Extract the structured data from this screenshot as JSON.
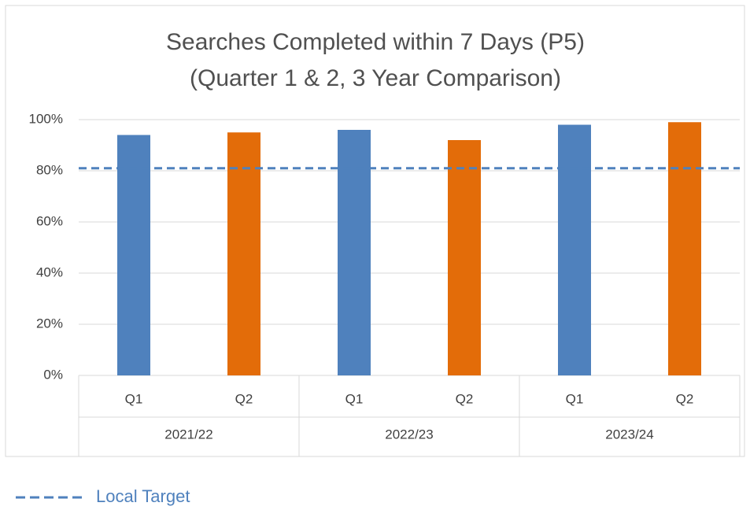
{
  "chart_data": {
    "type": "bar",
    "title": [
      "Searches Completed within 7 Days (P5)",
      "(Quarter 1 & 2, 3 Year Comparison)"
    ],
    "categories": [
      "Q1",
      "Q2",
      "Q1",
      "Q2",
      "Q1",
      "Q2"
    ],
    "groups": [
      "2021/22",
      "2022/23",
      "2023/24"
    ],
    "values": [
      94,
      95,
      96,
      92,
      98,
      99
    ],
    "colors": [
      "#4f81bd",
      "#e36c09",
      "#4f81bd",
      "#e36c09",
      "#4f81bd",
      "#e36c09"
    ],
    "target": {
      "name": "Local Target",
      "value": 81,
      "color": "#4f81bd"
    },
    "ylim": [
      0,
      100
    ],
    "yticks": [
      {
        "value": 0,
        "label": "0%"
      },
      {
        "value": 20,
        "label": "20%"
      },
      {
        "value": 40,
        "label": "40%"
      },
      {
        "value": 60,
        "label": "60%"
      },
      {
        "value": 80,
        "label": "80%"
      },
      {
        "value": 100,
        "label": "100%"
      }
    ],
    "grid": true,
    "legend": "bottom-left"
  }
}
